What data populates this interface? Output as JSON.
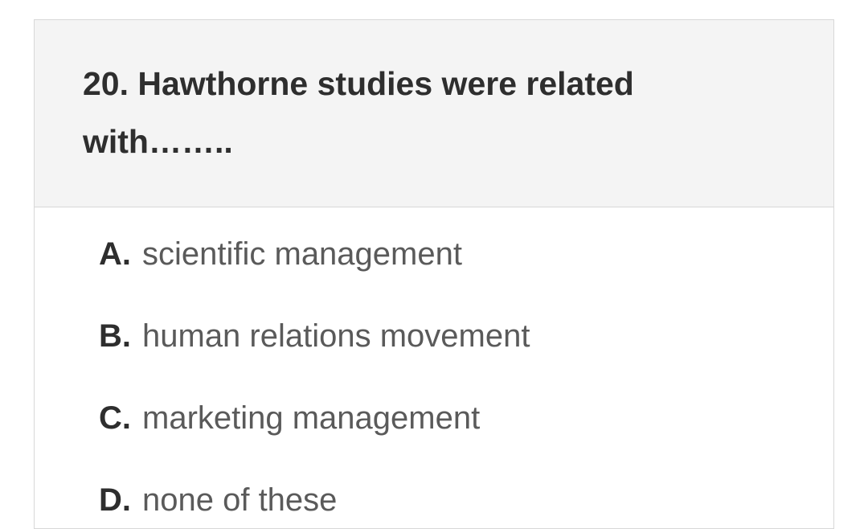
{
  "question": {
    "number": "20.",
    "text": "Hawthorne studies were related with……..",
    "full_text": "20. Hawthorne studies were related with…….."
  },
  "options": [
    {
      "letter": "A.",
      "text": "scientific management"
    },
    {
      "letter": "B.",
      "text": "human relations movement"
    },
    {
      "letter": "C.",
      "text": "marketing management"
    },
    {
      "letter": "D.",
      "text": "none of these"
    }
  ],
  "colors": {
    "header_bg": "#f4f4f4",
    "border": "#d8d8d8",
    "question_text": "#2e2e2e",
    "option_letter": "#2e2e2e",
    "option_text": "#5a5a5a",
    "body_bg": "#ffffff"
  },
  "typography": {
    "question_fontsize": 41,
    "question_fontweight": 600,
    "option_fontsize": 40,
    "letter_fontweight": 700,
    "text_fontweight": 400
  }
}
